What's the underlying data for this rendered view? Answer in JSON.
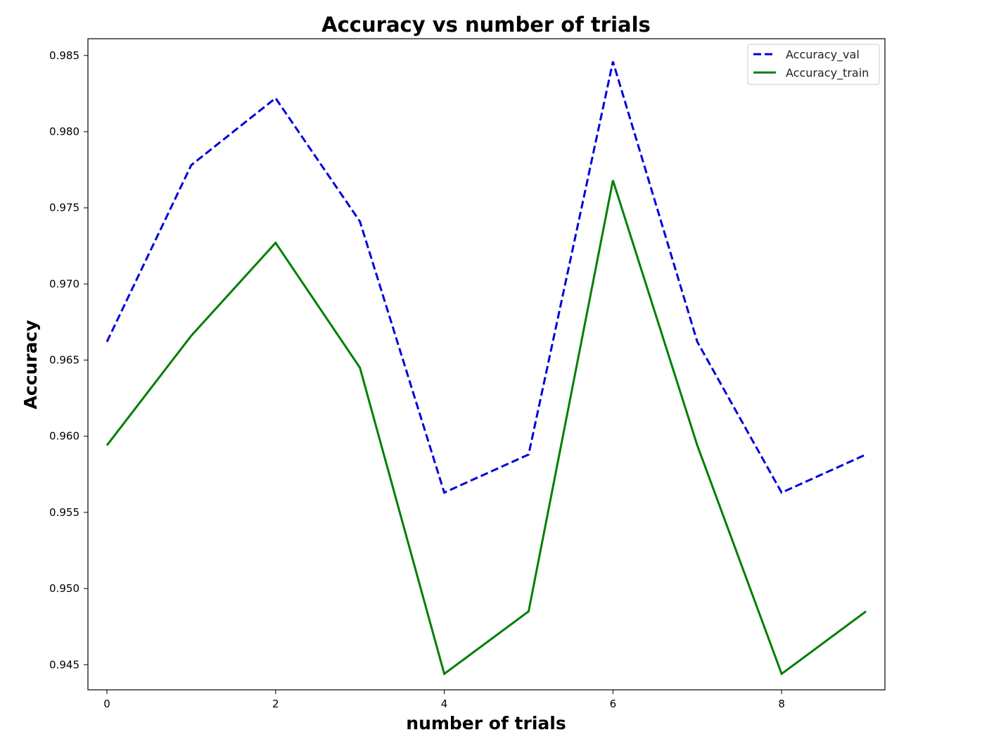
{
  "chart_data": {
    "type": "line",
    "title": "Accuracy vs  number of trials",
    "xlabel": "number of trials",
    "ylabel": "Accuracy",
    "x": [
      0,
      1,
      2,
      3,
      4,
      5,
      6,
      7,
      8,
      9
    ],
    "xlim": [
      -0.225,
      9.225
    ],
    "ylim": [
      0.94335,
      0.9861
    ],
    "xticks": [
      0,
      2,
      4,
      6,
      8
    ],
    "xtick_labels": [
      "0",
      "2",
      "4",
      "6",
      "8"
    ],
    "yticks": [
      0.945,
      0.95,
      0.955,
      0.96,
      0.965,
      0.97,
      0.975,
      0.98,
      0.985
    ],
    "ytick_labels": [
      "0.945",
      "0.950",
      "0.955",
      "0.960",
      "0.965",
      "0.970",
      "0.975",
      "0.980",
      "0.985"
    ],
    "grid": false,
    "legend_position": "top-right",
    "series": [
      {
        "name": "Accuracy_val",
        "color": "#0000dd",
        "style": "dashed",
        "values": [
          0.9662,
          0.9778,
          0.9822,
          0.9741,
          0.9563,
          0.9588,
          0.9846,
          0.9662,
          0.9563,
          0.9588
        ]
      },
      {
        "name": "Accuracy_train",
        "color": "#007f00",
        "style": "solid",
        "values": [
          0.9594,
          0.9666,
          0.9727,
          0.9645,
          0.9444,
          0.9485,
          0.9768,
          0.9594,
          0.9444,
          0.9485
        ]
      }
    ]
  }
}
